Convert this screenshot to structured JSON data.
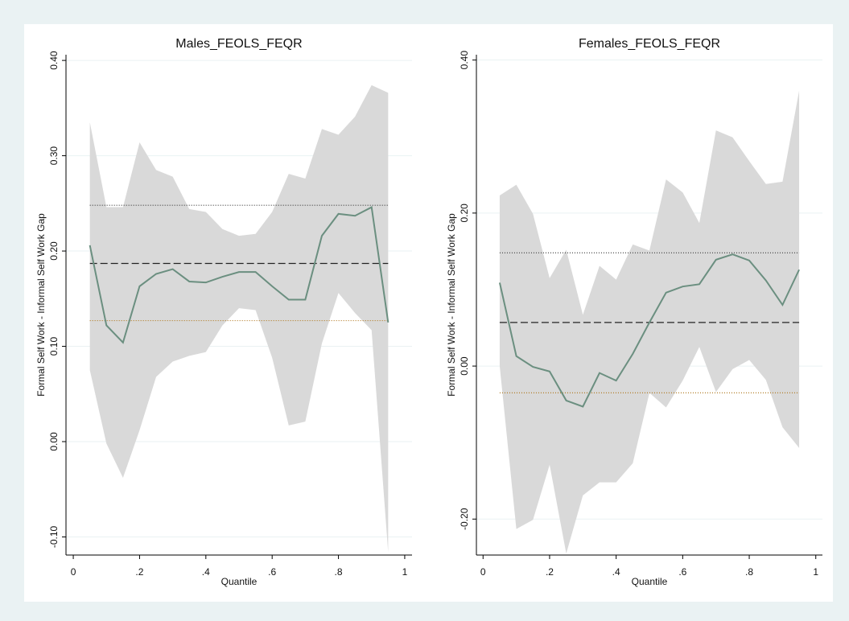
{
  "chart_data": [
    {
      "type": "line",
      "title": "Males_FEOLS_FEQR",
      "xlabel": "Quantile",
      "ylabel": "Formal Self Work - Informal Self Work Gap",
      "x": [
        0.05,
        0.1,
        0.15,
        0.2,
        0.25,
        0.3,
        0.35,
        0.4,
        0.45,
        0.5,
        0.55,
        0.6,
        0.65,
        0.7,
        0.75,
        0.8,
        0.85,
        0.9,
        0.95
      ],
      "values": [
        0.206,
        0.122,
        0.104,
        0.163,
        0.176,
        0.181,
        0.168,
        0.167,
        0.173,
        0.178,
        0.178,
        0.163,
        0.149,
        0.149,
        0.216,
        0.239,
        0.237,
        0.246,
        0.125
      ],
      "upper": [
        0.335,
        0.246,
        0.246,
        0.314,
        0.285,
        0.278,
        0.244,
        0.241,
        0.223,
        0.216,
        0.218,
        0.241,
        0.281,
        0.276,
        0.328,
        0.322,
        0.341,
        0.374,
        0.366
      ],
      "lower": [
        0.075,
        -0.002,
        -0.038,
        0.012,
        0.068,
        0.084,
        0.09,
        0.094,
        0.122,
        0.14,
        0.138,
        0.088,
        0.017,
        0.021,
        0.103,
        0.156,
        0.135,
        0.117,
        -0.116
      ],
      "hlines": [
        {
          "value": 0.248,
          "style": "dotted",
          "color": "#333333"
        },
        {
          "value": 0.187,
          "style": "dashed",
          "color": "#222222"
        },
        {
          "value": 0.127,
          "style": "dotted",
          "color": "#b07820"
        }
      ],
      "color": "#6b8f80",
      "band_color": "#d9d9d9",
      "xlim": [
        -0.022,
        1.022
      ],
      "ylim": [
        -0.119,
        0.406
      ],
      "xticks": [
        0,
        {
          "value": 0.2,
          "label": ".2"
        },
        {
          "value": 0.4,
          "label": ".4"
        },
        {
          "value": 0.6,
          "label": ".6"
        },
        {
          "value": 0.8,
          "label": ".8"
        },
        1
      ],
      "yticks": [
        {
          "value": 0.4,
          "label": "0.40"
        },
        {
          "value": 0.3,
          "label": "0.30"
        },
        {
          "value": 0.2,
          "label": "0.20"
        },
        {
          "value": 0.1,
          "label": "0.10"
        },
        {
          "value": 0,
          "label": "0.00"
        },
        {
          "value": -0.1,
          "label": "-0.10"
        }
      ],
      "grid": true
    },
    {
      "type": "line",
      "title": "Females_FEOLS_FEQR",
      "xlabel": "Quantile",
      "ylabel": "Formal Self Work - Informal Self Work Gap",
      "x": [
        0.05,
        0.1,
        0.15,
        0.2,
        0.25,
        0.3,
        0.35,
        0.4,
        0.45,
        0.5,
        0.55,
        0.6,
        0.65,
        0.7,
        0.75,
        0.8,
        0.85,
        0.9,
        0.95
      ],
      "values": [
        0.109,
        0.013,
        -0.001,
        -0.007,
        -0.045,
        -0.053,
        -0.009,
        -0.019,
        0.016,
        0.057,
        0.096,
        0.104,
        0.107,
        0.139,
        0.146,
        0.138,
        0.112,
        0.08,
        0.126
      ],
      "upper": [
        0.223,
        0.237,
        0.199,
        0.115,
        0.152,
        0.067,
        0.131,
        0.113,
        0.159,
        0.151,
        0.244,
        0.227,
        0.187,
        0.308,
        0.299,
        0.268,
        0.238,
        0.241,
        0.36
      ],
      "lower": [
        0.0,
        -0.213,
        -0.201,
        -0.129,
        -0.245,
        -0.169,
        -0.152,
        -0.152,
        -0.127,
        -0.035,
        -0.054,
        -0.019,
        0.025,
        -0.034,
        -0.004,
        0.008,
        -0.018,
        -0.08,
        -0.107
      ],
      "hlines": [
        {
          "value": 0.148,
          "style": "dotted",
          "color": "#333333"
        },
        {
          "value": 0.057,
          "style": "dashed",
          "color": "#222222"
        },
        {
          "value": -0.035,
          "style": "dotted",
          "color": "#b07820"
        }
      ],
      "color": "#6b8f80",
      "band_color": "#d9d9d9",
      "xlim": [
        -0.02,
        1.02
      ],
      "ylim": [
        -0.247,
        0.407
      ],
      "xticks": [
        0,
        {
          "value": 0.2,
          "label": ".2"
        },
        {
          "value": 0.4,
          "label": ".4"
        },
        {
          "value": 0.6,
          "label": ".6"
        },
        {
          "value": 0.8,
          "label": ".8"
        },
        1
      ],
      "yticks": [
        {
          "value": 0.4,
          "label": "0.40"
        },
        {
          "value": 0.2,
          "label": "0.20"
        },
        {
          "value": 0,
          "label": "0.00"
        },
        {
          "value": -0.2,
          "label": "-0.20"
        }
      ],
      "grid": true
    }
  ]
}
